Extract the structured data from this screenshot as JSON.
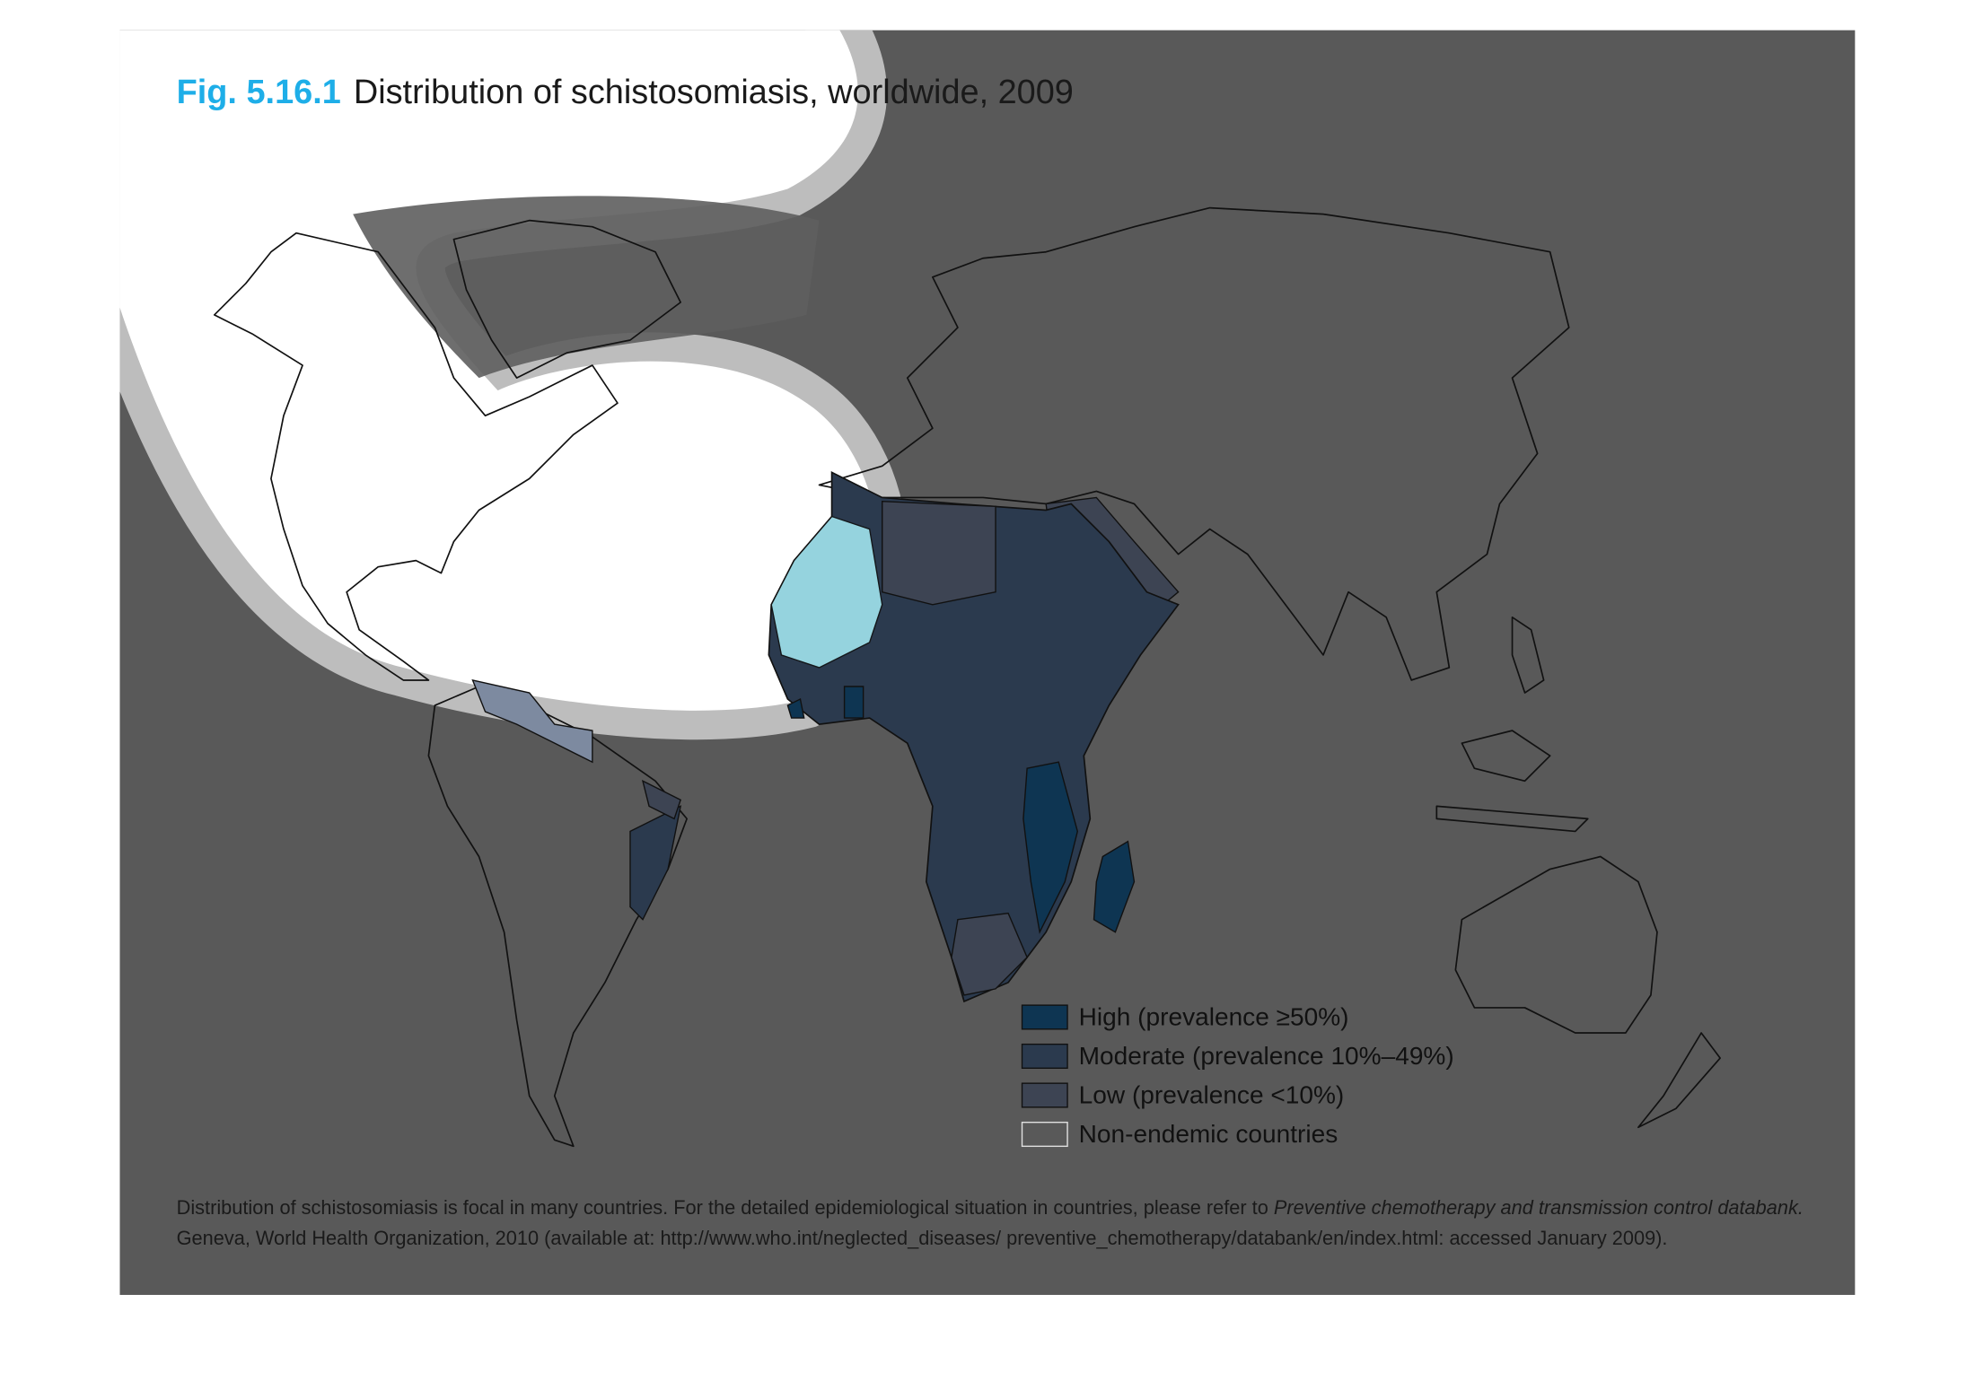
{
  "header": {
    "figure_number": "Fig. 5.16.1",
    "title": "Distribution of schistosomiasis, worldwide, 2009"
  },
  "legend": [
    {
      "label": "High (prevalence ≥50%)",
      "color": "#0e3552"
    },
    {
      "label": "Moderate (prevalence 10%–49%)",
      "color": "#2b3a4e"
    },
    {
      "label": "Low (prevalence <10%)",
      "color": "#3d4453"
    },
    {
      "label": "Non-endemic countries",
      "color": "#595959"
    }
  ],
  "note": {
    "text": "Distribution of schistosomiasis is focal in many countries. For the detailed epidemiological situation in countries, please refer to",
    "source_title": "Preventive chemotherapy and transmission control databank.",
    "source_details": "Geneva, World Health Organization, 2010 (available at: http://www.who.int/neglected_diseases/ preventive_chemotherapy/databank/en/index.html: accessed January 2009)."
  }
}
